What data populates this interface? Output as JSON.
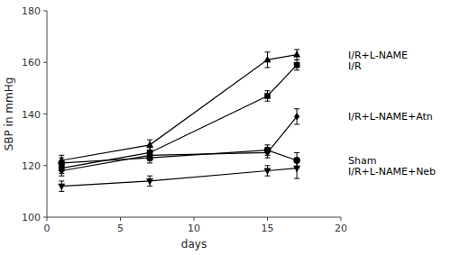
{
  "chart_data": {
    "type": "line",
    "x": [
      1,
      7,
      15,
      17
    ],
    "series": [
      {
        "name": "I/R+L-NAME",
        "values": [
          122,
          128,
          161,
          163
        ],
        "errors": [
          2,
          2,
          3,
          2
        ],
        "marker": "triangle-up"
      },
      {
        "name": "I/R",
        "values": [
          119,
          125,
          147,
          159
        ],
        "errors": [
          2,
          2,
          2,
          2
        ],
        "marker": "square"
      },
      {
        "name": "I/R+L-NAME+Atn",
        "values": [
          118,
          124,
          125,
          139
        ],
        "errors": [
          2,
          2,
          2,
          3
        ],
        "marker": "diamond"
      },
      {
        "name": "Sham",
        "values": [
          121,
          123,
          126,
          122
        ],
        "errors": [
          2,
          2,
          2,
          3
        ],
        "marker": "circle"
      },
      {
        "name": "I/R+L-NAME+Neb",
        "values": [
          112,
          114,
          118,
          119
        ],
        "errors": [
          2,
          2,
          2,
          4
        ],
        "marker": "triangle-down"
      }
    ],
    "color": "#000000",
    "xlabel": "days",
    "ylabel": "SBP in mmHg",
    "xlim": [
      0,
      20
    ],
    "ylim": [
      100,
      180
    ],
    "xticks": [
      0,
      5,
      10,
      15,
      20
    ],
    "yticks": [
      100,
      120,
      140,
      160,
      180
    ],
    "grid": false
  }
}
